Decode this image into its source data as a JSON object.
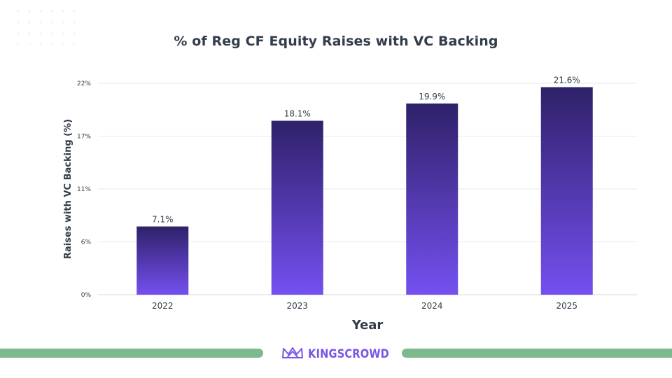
{
  "chart_data": {
    "type": "bar",
    "title": "% of Reg CF Equity Raises with VC Backing",
    "xlabel": "Year",
    "ylabel": "Raises with VC Backing (%)",
    "categories": [
      "2022",
      "2023",
      "2024",
      "2025"
    ],
    "values": [
      7.1,
      18.1,
      19.9,
      21.6
    ],
    "value_labels": [
      "7.1%",
      "18.1%",
      "19.9%",
      "21.6%"
    ],
    "ylim": [
      0,
      22
    ],
    "yticks": [
      0,
      5.5,
      11,
      16.5,
      22
    ],
    "ytick_labels": [
      "0%",
      "6%",
      "11%",
      "17%",
      "22%"
    ],
    "grid": true,
    "bar_colors": {
      "top": "#2f2169",
      "bottom": "#7450f0"
    }
  },
  "brand": {
    "name": "KINGSCROWD",
    "logo_icon": "crown-icon",
    "color": "#7a55e6"
  },
  "footer_color": "#7cb98c"
}
